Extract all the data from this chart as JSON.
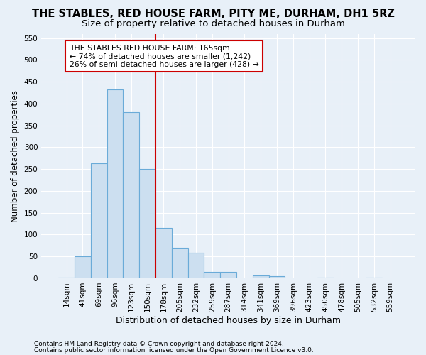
{
  "title": "THE STABLES, RED HOUSE FARM, PITY ME, DURHAM, DH1 5RZ",
  "subtitle": "Size of property relative to detached houses in Durham",
  "xlabel": "Distribution of detached houses by size in Durham",
  "ylabel": "Number of detached properties",
  "categories": [
    "14sqm",
    "41sqm",
    "69sqm",
    "96sqm",
    "123sqm",
    "150sqm",
    "178sqm",
    "205sqm",
    "232sqm",
    "259sqm",
    "287sqm",
    "314sqm",
    "341sqm",
    "369sqm",
    "396sqm",
    "423sqm",
    "450sqm",
    "478sqm",
    "505sqm",
    "532sqm",
    "559sqm"
  ],
  "values": [
    2,
    50,
    263,
    432,
    380,
    250,
    115,
    70,
    58,
    15,
    15,
    0,
    7,
    5,
    0,
    0,
    2,
    0,
    0,
    2,
    0
  ],
  "bar_color": "#ccdff0",
  "bar_edge_color": "#6aabd8",
  "vline_color": "#cc0000",
  "annotation_box_text": "THE STABLES RED HOUSE FARM: 165sqm\n← 74% of detached houses are smaller (1,242)\n26% of semi-detached houses are larger (428) →",
  "annotation_box_edgecolor": "#cc0000",
  "ylim": [
    0,
    560
  ],
  "yticks": [
    0,
    50,
    100,
    150,
    200,
    250,
    300,
    350,
    400,
    450,
    500,
    550
  ],
  "footnote1": "Contains HM Land Registry data © Crown copyright and database right 2024.",
  "footnote2": "Contains public sector information licensed under the Open Government Licence v3.0.",
  "background_color": "#e8f0f8",
  "grid_color": "#ffffff",
  "title_fontsize": 10.5,
  "subtitle_fontsize": 9.5,
  "ylabel_fontsize": 8.5,
  "xlabel_fontsize": 9,
  "tick_fontsize": 7.5,
  "annot_fontsize": 7.8,
  "footnote_fontsize": 6.5
}
